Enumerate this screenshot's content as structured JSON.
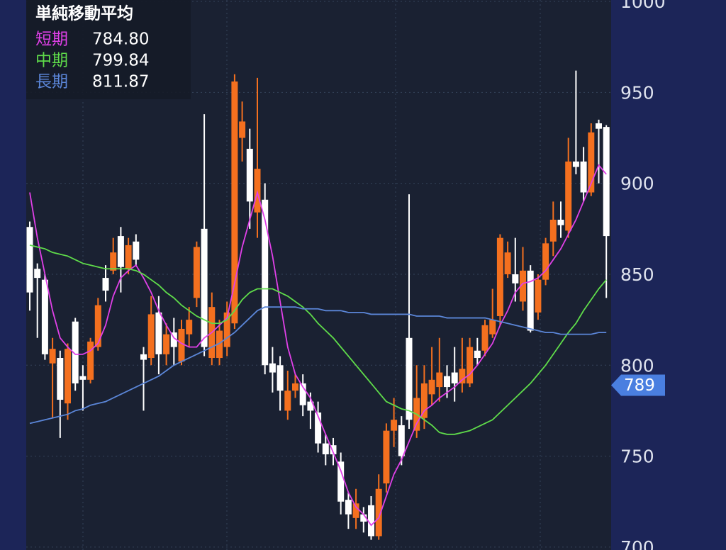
{
  "chart_data": {
    "type": "candlestick",
    "title": "単純移動平均",
    "up_color": "#f4701f",
    "down_color": "#ffffff",
    "open": [
      876,
      853,
      847,
      801,
      804,
      779,
      824,
      794,
      792,
      810,
      848,
      852,
      871,
      853,
      868,
      806,
      804,
      829,
      806,
      818,
      802,
      817,
      837,
      875,
      804,
      804,
      810,
      823,
      925,
      919,
      884,
      891,
      801,
      800,
      775,
      786,
      790,
      780,
      774,
      757,
      756,
      747,
      726,
      716,
      718,
      723,
      706,
      735,
      764,
      767,
      815,
      764,
      771,
      784,
      788,
      794,
      796,
      790,
      790,
      808,
      808,
      817,
      827,
      850,
      850,
      835,
      852,
      829,
      847,
      868,
      880,
      874,
      912,
      912,
      895,
      933,
      931
    ],
    "high": [
      879,
      856,
      850,
      815,
      808,
      812,
      826,
      800,
      815,
      837,
      855,
      870,
      876,
      870,
      872,
      810,
      838,
      838,
      823,
      826,
      825,
      832,
      868,
      938,
      840,
      825,
      835,
      960,
      945,
      930,
      958,
      900,
      810,
      805,
      797,
      795,
      795,
      785,
      780,
      762,
      760,
      752,
      730,
      732,
      722,
      728,
      740,
      768,
      782,
      772,
      894,
      800,
      800,
      810,
      815,
      800,
      810,
      815,
      815,
      815,
      825,
      842,
      872,
      868,
      870,
      865,
      855,
      850,
      870,
      890,
      890,
      925,
      962,
      920,
      933,
      935,
      932
    ],
    "low": [
      830,
      815,
      803,
      771,
      760,
      770,
      786,
      775,
      790,
      808,
      835,
      850,
      840,
      850,
      855,
      775,
      800,
      795,
      800,
      800,
      800,
      810,
      832,
      805,
      800,
      800,
      805,
      820,
      912,
      875,
      870,
      795,
      785,
      775,
      770,
      782,
      772,
      765,
      752,
      745,
      745,
      718,
      710,
      710,
      708,
      704,
      704,
      730,
      755,
      745,
      765,
      760,
      765,
      778,
      780,
      782,
      780,
      785,
      788,
      800,
      805,
      815,
      822,
      848,
      835,
      830,
      818,
      825,
      844,
      860,
      870,
      870,
      905,
      890,
      893,
      900,
      837
    ],
    "close": [
      840,
      848,
      806,
      809,
      781,
      809,
      790,
      792,
      813,
      833,
      841,
      862,
      854,
      866,
      858,
      803,
      828,
      806,
      817,
      810,
      820,
      825,
      865,
      810,
      832,
      819,
      829,
      956,
      934,
      890,
      908,
      800,
      796,
      786,
      786,
      790,
      778,
      775,
      757,
      751,
      751,
      725,
      718,
      724,
      714,
      706,
      732,
      764,
      770,
      750,
      770,
      782,
      790,
      792,
      796,
      788,
      790,
      798,
      810,
      804,
      822,
      825,
      870,
      862,
      845,
      852,
      819,
      847,
      867,
      880,
      877,
      912,
      909,
      895,
      928,
      930,
      871
    ],
    "ylim": [
      698.4,
      1000.8
    ],
    "yticks": [
      700,
      750,
      800,
      850,
      900,
      950,
      1000
    ],
    "grid": true,
    "current_price": 789,
    "series": [
      {
        "name": "短期",
        "color": "#e040e8",
        "legend_value": "784.80",
        "values": [
          895,
          870,
          850,
          830,
          815,
          810,
          806,
          806,
          808,
          812,
          822,
          838,
          848,
          852,
          855,
          848,
          840,
          830,
          822,
          815,
          812,
          810,
          810,
          815,
          818,
          822,
          826,
          845,
          865,
          880,
          895,
          880,
          860,
          835,
          810,
          795,
          788,
          782,
          772,
          762,
          752,
          742,
          730,
          722,
          718,
          712,
          716,
          728,
          740,
          748,
          758,
          768,
          775,
          778,
          782,
          785,
          788,
          792,
          795,
          800,
          806,
          812,
          822,
          830,
          840,
          845,
          846,
          848,
          852,
          858,
          864,
          872,
          880,
          890,
          900,
          910,
          905
        ]
      },
      {
        "name": "中期",
        "color": "#5fdc4a",
        "legend_value": "799.84",
        "values": [
          866,
          865,
          864,
          862,
          861,
          860,
          858,
          856,
          855,
          854,
          853,
          853,
          853,
          853,
          852,
          850,
          847,
          844,
          840,
          837,
          833,
          830,
          827,
          825,
          823,
          823,
          825,
          830,
          836,
          840,
          842,
          842,
          842,
          840,
          838,
          835,
          832,
          828,
          823,
          819,
          815,
          810,
          805,
          800,
          795,
          790,
          785,
          780,
          778,
          776,
          775,
          773,
          770,
          767,
          763,
          762,
          762,
          763,
          764,
          766,
          768,
          770,
          774,
          778,
          782,
          786,
          790,
          795,
          800,
          806,
          812,
          818,
          823,
          830,
          836,
          842,
          847
        ]
      },
      {
        "name": "長期",
        "color": "#5b86d8",
        "legend_value": "811.87",
        "values": [
          768,
          769,
          770,
          771,
          772,
          773,
          775,
          776,
          778,
          779,
          780,
          782,
          784,
          786,
          788,
          790,
          792,
          794,
          797,
          800,
          802,
          804,
          806,
          808,
          810,
          812,
          815,
          818,
          822,
          826,
          830,
          832,
          832,
          832,
          832,
          832,
          831,
          831,
          831,
          830,
          830,
          830,
          829,
          829,
          829,
          828,
          828,
          828,
          828,
          828,
          828,
          827,
          827,
          827,
          827,
          826,
          826,
          826,
          826,
          826,
          826,
          825,
          824,
          823,
          822,
          821,
          820,
          819,
          818,
          818,
          817,
          817,
          817,
          817,
          817,
          818,
          818
        ]
      }
    ]
  }
}
